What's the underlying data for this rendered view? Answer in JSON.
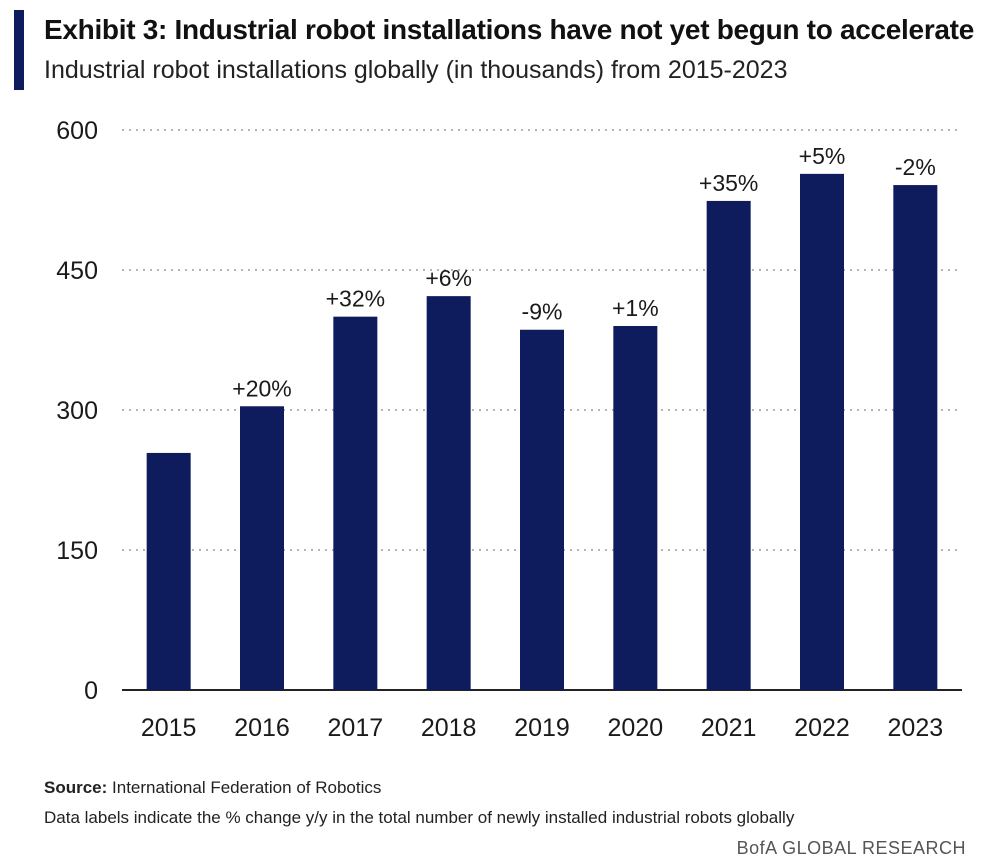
{
  "header": {
    "title": "Exhibit 3: Industrial robot installations have not yet begun to accelerate",
    "subtitle": "Industrial robot installations globally (in thousands) from 2015-2023"
  },
  "footer": {
    "source_label": "Source:",
    "source_text": "International Federation of Robotics",
    "note": "Data labels indicate the % change y/y in the total number of newly installed industrial robots globally",
    "brand": "BofA GLOBAL RESEARCH"
  },
  "colors": {
    "bar": "#0e1b5c",
    "accent": "#0e1b5c",
    "grid": "#b5b5b5"
  },
  "chart_data": {
    "type": "bar",
    "categories": [
      "2015",
      "2016",
      "2017",
      "2018",
      "2019",
      "2020",
      "2021",
      "2022",
      "2023"
    ],
    "values": [
      254,
      304,
      400,
      422,
      386,
      390,
      524,
      553,
      541
    ],
    "data_labels": [
      "",
      "+20%",
      "+32%",
      "+6%",
      "-9%",
      "+1%",
      "+35%",
      "+5%",
      "-2%"
    ],
    "yticks": [
      "0",
      "150",
      "300",
      "450",
      "600"
    ],
    "ylim": [
      0,
      600
    ],
    "grid": "dotted-horizontal",
    "xlabel": "",
    "ylabel": ""
  }
}
